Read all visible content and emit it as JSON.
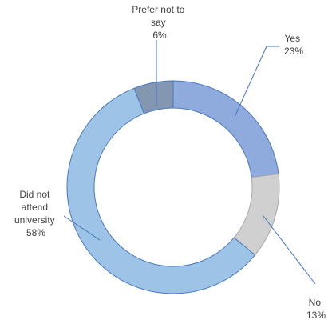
{
  "chart_data": {
    "type": "pie",
    "title": "",
    "categories": [
      "Yes",
      "No",
      "Did not attend university",
      "Prefer not to say"
    ],
    "values": [
      23,
      13,
      58,
      6
    ],
    "colors": [
      "#8faadc",
      "#d0d0d0",
      "#9dc3e6",
      "#8497b0"
    ],
    "data_labels": [
      {
        "lines": [
          "Yes",
          "23%"
        ]
      },
      {
        "lines": [
          "No",
          "13%"
        ]
      },
      {
        "lines": [
          "Did not",
          "attend",
          "university",
          "58%"
        ]
      },
      {
        "lines": [
          "Prefer not to",
          "say",
          "6%"
        ]
      }
    ],
    "legend": "none",
    "donut": true
  }
}
